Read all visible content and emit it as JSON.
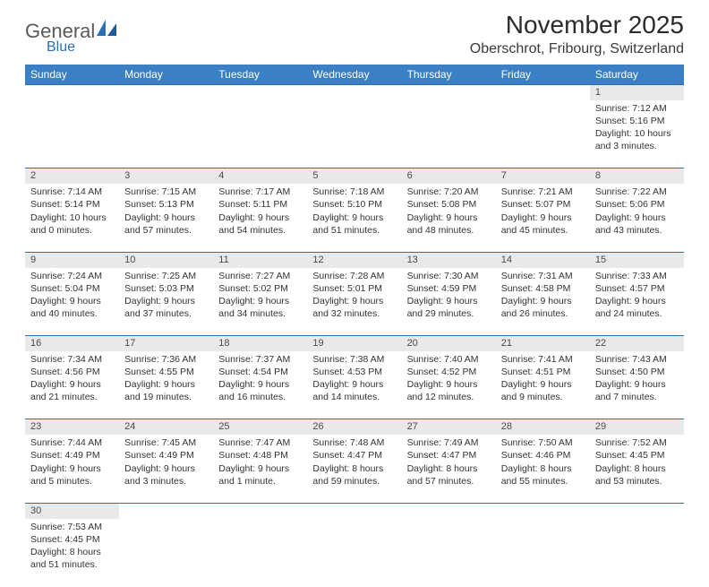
{
  "logo": {
    "text1": "General",
    "text2": "Blue"
  },
  "title": "November 2025",
  "location": "Oberschrot, Fribourg, Switzerland",
  "colors": {
    "header_bg": "#3b7fc4",
    "header_text": "#ffffff",
    "daynum_bg": "#e9e9e9",
    "row_divider": "#2c6fb5",
    "logo_gray": "#5a5a5a",
    "logo_blue": "#2c6fb5"
  },
  "weekdays": [
    "Sunday",
    "Monday",
    "Tuesday",
    "Wednesday",
    "Thursday",
    "Friday",
    "Saturday"
  ],
  "weeks": [
    [
      null,
      null,
      null,
      null,
      null,
      null,
      {
        "n": "1",
        "sunrise": "Sunrise: 7:12 AM",
        "sunset": "Sunset: 5:16 PM",
        "daylight": "Daylight: 10 hours and 3 minutes."
      }
    ],
    [
      {
        "n": "2",
        "sunrise": "Sunrise: 7:14 AM",
        "sunset": "Sunset: 5:14 PM",
        "daylight": "Daylight: 10 hours and 0 minutes."
      },
      {
        "n": "3",
        "sunrise": "Sunrise: 7:15 AM",
        "sunset": "Sunset: 5:13 PM",
        "daylight": "Daylight: 9 hours and 57 minutes."
      },
      {
        "n": "4",
        "sunrise": "Sunrise: 7:17 AM",
        "sunset": "Sunset: 5:11 PM",
        "daylight": "Daylight: 9 hours and 54 minutes."
      },
      {
        "n": "5",
        "sunrise": "Sunrise: 7:18 AM",
        "sunset": "Sunset: 5:10 PM",
        "daylight": "Daylight: 9 hours and 51 minutes."
      },
      {
        "n": "6",
        "sunrise": "Sunrise: 7:20 AM",
        "sunset": "Sunset: 5:08 PM",
        "daylight": "Daylight: 9 hours and 48 minutes."
      },
      {
        "n": "7",
        "sunrise": "Sunrise: 7:21 AM",
        "sunset": "Sunset: 5:07 PM",
        "daylight": "Daylight: 9 hours and 45 minutes."
      },
      {
        "n": "8",
        "sunrise": "Sunrise: 7:22 AM",
        "sunset": "Sunset: 5:06 PM",
        "daylight": "Daylight: 9 hours and 43 minutes."
      }
    ],
    [
      {
        "n": "9",
        "sunrise": "Sunrise: 7:24 AM",
        "sunset": "Sunset: 5:04 PM",
        "daylight": "Daylight: 9 hours and 40 minutes."
      },
      {
        "n": "10",
        "sunrise": "Sunrise: 7:25 AM",
        "sunset": "Sunset: 5:03 PM",
        "daylight": "Daylight: 9 hours and 37 minutes."
      },
      {
        "n": "11",
        "sunrise": "Sunrise: 7:27 AM",
        "sunset": "Sunset: 5:02 PM",
        "daylight": "Daylight: 9 hours and 34 minutes."
      },
      {
        "n": "12",
        "sunrise": "Sunrise: 7:28 AM",
        "sunset": "Sunset: 5:01 PM",
        "daylight": "Daylight: 9 hours and 32 minutes."
      },
      {
        "n": "13",
        "sunrise": "Sunrise: 7:30 AM",
        "sunset": "Sunset: 4:59 PM",
        "daylight": "Daylight: 9 hours and 29 minutes."
      },
      {
        "n": "14",
        "sunrise": "Sunrise: 7:31 AM",
        "sunset": "Sunset: 4:58 PM",
        "daylight": "Daylight: 9 hours and 26 minutes."
      },
      {
        "n": "15",
        "sunrise": "Sunrise: 7:33 AM",
        "sunset": "Sunset: 4:57 PM",
        "daylight": "Daylight: 9 hours and 24 minutes."
      }
    ],
    [
      {
        "n": "16",
        "sunrise": "Sunrise: 7:34 AM",
        "sunset": "Sunset: 4:56 PM",
        "daylight": "Daylight: 9 hours and 21 minutes."
      },
      {
        "n": "17",
        "sunrise": "Sunrise: 7:36 AM",
        "sunset": "Sunset: 4:55 PM",
        "daylight": "Daylight: 9 hours and 19 minutes."
      },
      {
        "n": "18",
        "sunrise": "Sunrise: 7:37 AM",
        "sunset": "Sunset: 4:54 PM",
        "daylight": "Daylight: 9 hours and 16 minutes."
      },
      {
        "n": "19",
        "sunrise": "Sunrise: 7:38 AM",
        "sunset": "Sunset: 4:53 PM",
        "daylight": "Daylight: 9 hours and 14 minutes."
      },
      {
        "n": "20",
        "sunrise": "Sunrise: 7:40 AM",
        "sunset": "Sunset: 4:52 PM",
        "daylight": "Daylight: 9 hours and 12 minutes."
      },
      {
        "n": "21",
        "sunrise": "Sunrise: 7:41 AM",
        "sunset": "Sunset: 4:51 PM",
        "daylight": "Daylight: 9 hours and 9 minutes."
      },
      {
        "n": "22",
        "sunrise": "Sunrise: 7:43 AM",
        "sunset": "Sunset: 4:50 PM",
        "daylight": "Daylight: 9 hours and 7 minutes."
      }
    ],
    [
      {
        "n": "23",
        "sunrise": "Sunrise: 7:44 AM",
        "sunset": "Sunset: 4:49 PM",
        "daylight": "Daylight: 9 hours and 5 minutes."
      },
      {
        "n": "24",
        "sunrise": "Sunrise: 7:45 AM",
        "sunset": "Sunset: 4:49 PM",
        "daylight": "Daylight: 9 hours and 3 minutes."
      },
      {
        "n": "25",
        "sunrise": "Sunrise: 7:47 AM",
        "sunset": "Sunset: 4:48 PM",
        "daylight": "Daylight: 9 hours and 1 minute."
      },
      {
        "n": "26",
        "sunrise": "Sunrise: 7:48 AM",
        "sunset": "Sunset: 4:47 PM",
        "daylight": "Daylight: 8 hours and 59 minutes."
      },
      {
        "n": "27",
        "sunrise": "Sunrise: 7:49 AM",
        "sunset": "Sunset: 4:47 PM",
        "daylight": "Daylight: 8 hours and 57 minutes."
      },
      {
        "n": "28",
        "sunrise": "Sunrise: 7:50 AM",
        "sunset": "Sunset: 4:46 PM",
        "daylight": "Daylight: 8 hours and 55 minutes."
      },
      {
        "n": "29",
        "sunrise": "Sunrise: 7:52 AM",
        "sunset": "Sunset: 4:45 PM",
        "daylight": "Daylight: 8 hours and 53 minutes."
      }
    ],
    [
      {
        "n": "30",
        "sunrise": "Sunrise: 7:53 AM",
        "sunset": "Sunset: 4:45 PM",
        "daylight": "Daylight: 8 hours and 51 minutes."
      },
      null,
      null,
      null,
      null,
      null,
      null
    ]
  ]
}
